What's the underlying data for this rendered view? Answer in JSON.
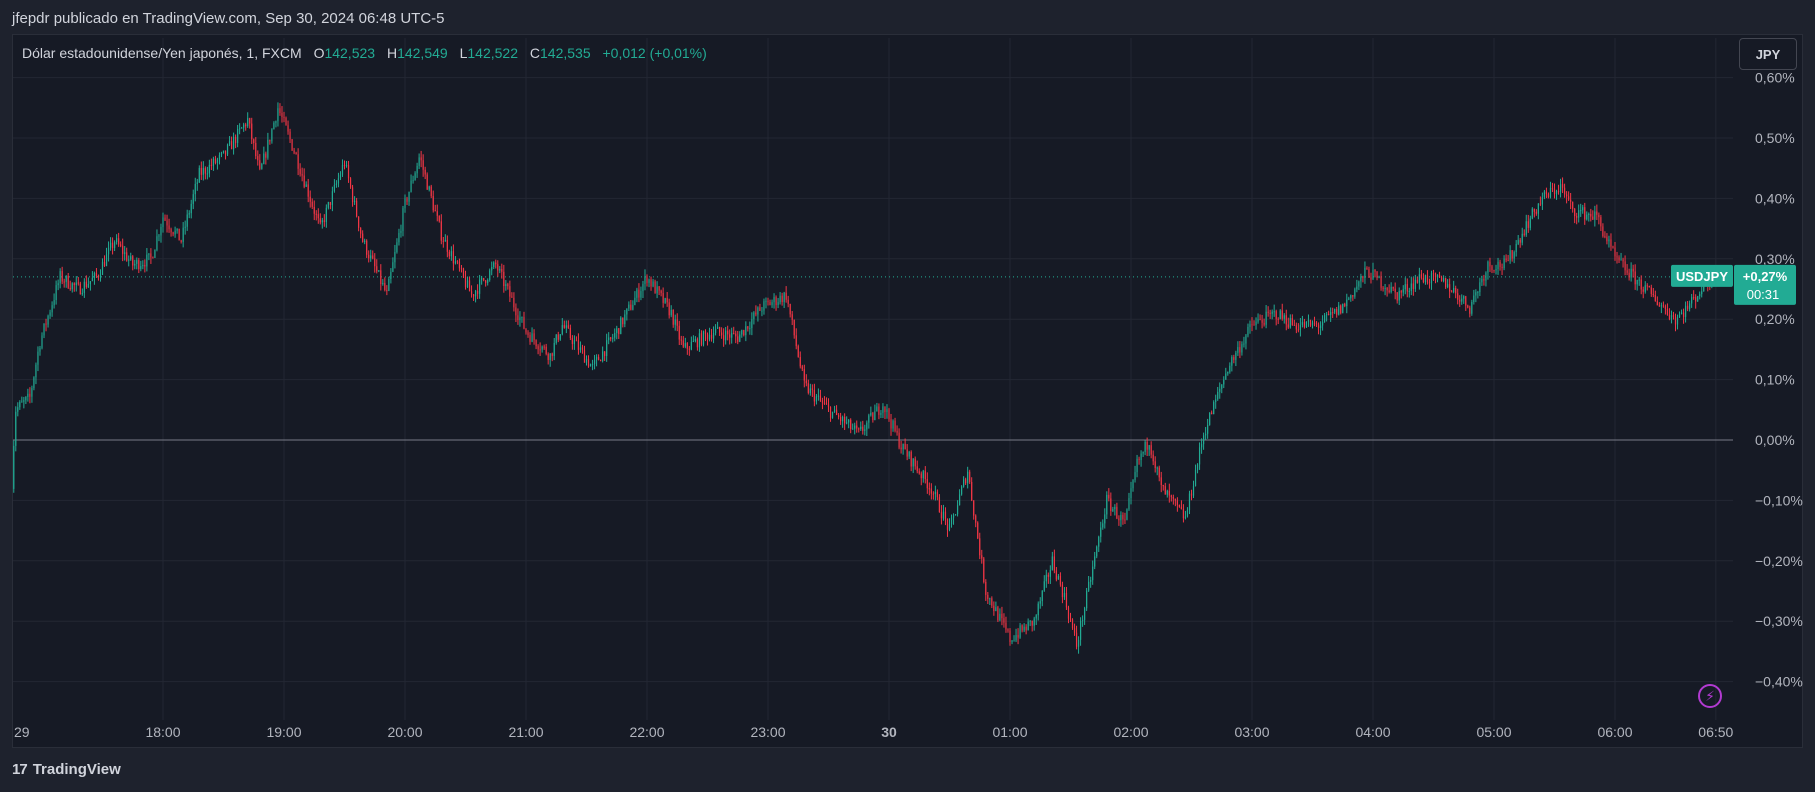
{
  "caption": "jfepdr publicado en TradingView.com, Sep 30, 2024 06:48 UTC-5",
  "legend": {
    "symbol": "Dólar estadounidense/Yen japonés, 1, FXCM",
    "o_label": "O",
    "o_value": "142,523",
    "h_label": "H",
    "h_value": "142,549",
    "l_label": "L",
    "l_value": "142,522",
    "c_label": "C",
    "c_value": "142,535",
    "change": "+0,012 (+0,01%)"
  },
  "currency_button": "JPY",
  "footer": {
    "logo_text": "TradingView",
    "logo_mark": "17"
  },
  "colors": {
    "up": "#22ab94",
    "down": "#f23645",
    "bg": "#161a25",
    "grid": "#232733",
    "text": "#b2b5be"
  },
  "chart_data": {
    "type": "candlestick",
    "title": "",
    "xlabel": "",
    "ylabel": "",
    "ylim": [
      -0.44,
      0.6
    ],
    "y_ticks": [
      0.6,
      0.5,
      0.4,
      0.3,
      0.2,
      0.1,
      0.0,
      -0.1,
      -0.2,
      -0.3,
      -0.4
    ],
    "y_tick_labels": [
      "0,60%",
      "0,50%",
      "0,40%",
      "0,30%",
      "0,20%",
      "0,10%",
      "0,00%",
      "−0,10%",
      "−0,20%",
      "−0,30%",
      "−0,40%"
    ],
    "x_tick_labels": [
      "29",
      "18:00",
      "19:00",
      "20:00",
      "21:00",
      "22:00",
      "23:00",
      "30",
      "01:00",
      "02:00",
      "03:00",
      "04:00",
      "05:00",
      "06:00",
      "06:50"
    ],
    "x_tick_positions_hours": [
      -1.25,
      0,
      1,
      2,
      3,
      4,
      5,
      6,
      7,
      8,
      9,
      10,
      11,
      12,
      12.8333
    ],
    "x_range_hours": [
      -1.25,
      12.98
    ],
    "grid": true,
    "baseline": 0.0,
    "current": {
      "symbol": "USDJPY",
      "change": "+0,27%",
      "countdown": "00:31",
      "value": 0.27
    },
    "path_keypoints": [
      [
        -1.25,
        -0.07
      ],
      [
        -1.22,
        0.05
      ],
      [
        -1.1,
        0.07
      ],
      [
        -1.02,
        0.16
      ],
      [
        -0.85,
        0.27
      ],
      [
        -0.7,
        0.25
      ],
      [
        -0.55,
        0.27
      ],
      [
        -0.4,
        0.33
      ],
      [
        -0.25,
        0.29
      ],
      [
        -0.1,
        0.3
      ],
      [
        0.0,
        0.37
      ],
      [
        0.15,
        0.33
      ],
      [
        0.3,
        0.44
      ],
      [
        0.5,
        0.47
      ],
      [
        0.7,
        0.53
      ],
      [
        0.8,
        0.44
      ],
      [
        0.95,
        0.55
      ],
      [
        1.1,
        0.47
      ],
      [
        1.3,
        0.35
      ],
      [
        1.5,
        0.46
      ],
      [
        1.65,
        0.33
      ],
      [
        1.85,
        0.24
      ],
      [
        2.0,
        0.39
      ],
      [
        2.12,
        0.47
      ],
      [
        2.3,
        0.34
      ],
      [
        2.55,
        0.24
      ],
      [
        2.75,
        0.29
      ],
      [
        3.0,
        0.18
      ],
      [
        3.2,
        0.14
      ],
      [
        3.3,
        0.19
      ],
      [
        3.55,
        0.12
      ],
      [
        3.75,
        0.18
      ],
      [
        4.0,
        0.27
      ],
      [
        4.2,
        0.21
      ],
      [
        4.3,
        0.15
      ],
      [
        4.55,
        0.18
      ],
      [
        4.75,
        0.17
      ],
      [
        4.95,
        0.22
      ],
      [
        5.15,
        0.24
      ],
      [
        5.3,
        0.09
      ],
      [
        5.5,
        0.05
      ],
      [
        5.75,
        0.01
      ],
      [
        5.95,
        0.06
      ],
      [
        6.1,
        -0.01
      ],
      [
        6.35,
        -0.08
      ],
      [
        6.5,
        -0.15
      ],
      [
        6.65,
        -0.05
      ],
      [
        6.8,
        -0.25
      ],
      [
        7.0,
        -0.33
      ],
      [
        7.2,
        -0.3
      ],
      [
        7.35,
        -0.2
      ],
      [
        7.45,
        -0.26
      ],
      [
        7.55,
        -0.34
      ],
      [
        7.8,
        -0.1
      ],
      [
        7.95,
        -0.14
      ],
      [
        8.05,
        -0.04
      ],
      [
        8.15,
        0.0
      ],
      [
        8.25,
        -0.08
      ],
      [
        8.45,
        -0.13
      ],
      [
        8.6,
        0.01
      ],
      [
        8.8,
        0.12
      ],
      [
        9.0,
        0.19
      ],
      [
        9.2,
        0.21
      ],
      [
        9.35,
        0.19
      ],
      [
        9.55,
        0.19
      ],
      [
        9.75,
        0.22
      ],
      [
        9.95,
        0.28
      ],
      [
        10.2,
        0.24
      ],
      [
        10.4,
        0.27
      ],
      [
        10.6,
        0.26
      ],
      [
        10.8,
        0.22
      ],
      [
        10.95,
        0.29
      ],
      [
        11.1,
        0.29
      ],
      [
        11.25,
        0.35
      ],
      [
        11.4,
        0.4
      ],
      [
        11.55,
        0.42
      ],
      [
        11.65,
        0.38
      ],
      [
        11.85,
        0.37
      ],
      [
        12.0,
        0.3
      ],
      [
        12.2,
        0.26
      ],
      [
        12.4,
        0.22
      ],
      [
        12.5,
        0.2
      ],
      [
        12.6,
        0.22
      ],
      [
        12.75,
        0.26
      ],
      [
        12.83,
        0.27
      ]
    ]
  }
}
